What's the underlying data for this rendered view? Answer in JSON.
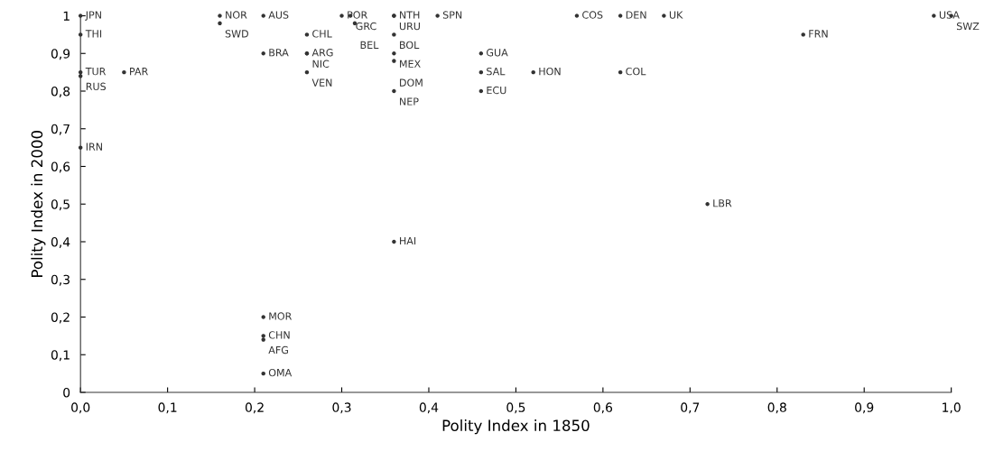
{
  "chart_data": {
    "type": "scatter",
    "xlabel": "Polity Index in 1850",
    "ylabel": "Polity Index in 2000",
    "marker": "circle",
    "grid": false,
    "legend": false,
    "xlim": [
      0,
      1
    ],
    "ylim": [
      0,
      1
    ],
    "xticks": [
      {
        "value": 0,
        "label": "0,0"
      },
      {
        "value": 0.1,
        "label": "0,1"
      },
      {
        "value": 0.2,
        "label": "0,2"
      },
      {
        "value": 0.3,
        "label": "0,3"
      },
      {
        "value": 0.4,
        "label": "0,4"
      },
      {
        "value": 0.5,
        "label": "0,5"
      },
      {
        "value": 0.6,
        "label": "0,6"
      },
      {
        "value": 0.7,
        "label": "0,7"
      },
      {
        "value": 0.8,
        "label": "0,8"
      },
      {
        "value": 0.9,
        "label": "0,9"
      },
      {
        "value": 1,
        "label": "1,0"
      }
    ],
    "yticks": [
      0,
      {
        "value": 0.1,
        "label": "0,1"
      },
      {
        "value": 0.2,
        "label": "0,2"
      },
      {
        "value": 0.3,
        "label": "0,3"
      },
      {
        "value": 0.4,
        "label": "0,4"
      },
      {
        "value": 0.5,
        "label": "0,5"
      },
      {
        "value": 0.6,
        "label": "0,6"
      },
      {
        "value": 0.7,
        "label": "0,7"
      },
      {
        "value": 0.8,
        "label": "0,8"
      },
      {
        "value": 0.9,
        "label": "0,9"
      },
      1
    ],
    "series": [
      {
        "color": "#333333",
        "x": [
          0.0,
          0.0,
          0.0,
          0.0,
          0.05,
          0.16,
          0.16,
          0.21,
          0.26,
          0.21,
          0.26,
          0.26,
          0.26,
          0.3,
          0.31,
          0.315,
          0.36,
          0.36,
          0.36,
          0.36,
          0.36,
          0.36,
          0.41,
          0.46,
          0.46,
          0.46,
          0.52,
          0.57,
          0.62,
          0.62,
          0.67,
          0.83,
          0.98,
          1.0,
          0.72,
          0.0,
          0.36,
          0.21,
          0.21,
          0.21,
          0.21
        ],
        "values": [
          1.0,
          0.95,
          0.85,
          0.84,
          0.85,
          1.0,
          0.98,
          1.0,
          0.95,
          0.9,
          0.9,
          0.9,
          0.85,
          1.0,
          1.0,
          0.98,
          1.0,
          1.0,
          0.95,
          0.9,
          0.88,
          0.8,
          1.0,
          0.9,
          0.85,
          0.8,
          0.85,
          1.0,
          1.0,
          0.85,
          1.0,
          0.95,
          1.0,
          1.0,
          0.5,
          0.65,
          0.4,
          0.2,
          0.15,
          0.14,
          0.05
        ],
        "value_labels": [
          "JPN",
          "THI",
          "TUR",
          "RUS",
          "PAR",
          "NOR",
          "SWD",
          "AUS",
          "CHL",
          "BRA",
          "ARG",
          "NIC",
          "VEN",
          "POR",
          "GRC",
          "BEL",
          "NTH",
          "URU",
          "BOL",
          "MEX",
          "DOM",
          "NEP",
          "SPN",
          "GUA",
          "SAL",
          "ECU",
          "HON",
          "COS",
          "DEN",
          "COL",
          "UK",
          "FRN",
          "USA",
          "SWZ",
          "LBR",
          "IRN",
          "HAI",
          "MOR",
          "CHN",
          "AFG",
          "OMA"
        ]
      }
    ]
  }
}
